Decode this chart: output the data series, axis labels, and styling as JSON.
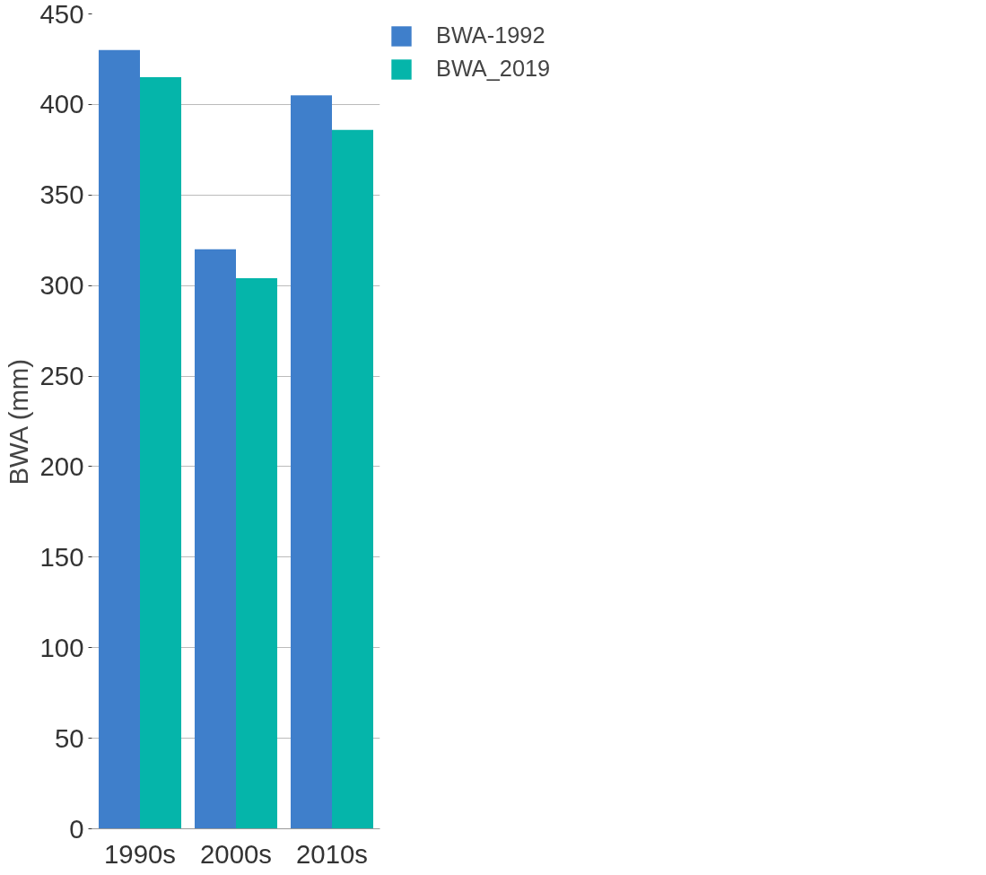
{
  "chart_data": {
    "type": "bar",
    "ylabel": "BWA (mm)",
    "categories": [
      "1990s",
      "2000s",
      "2010s"
    ],
    "series": [
      {
        "name": "BWA-1992",
        "color": "#3f7fcb",
        "values": [
          430,
          320,
          405
        ]
      },
      {
        "name": "BWA_2019",
        "color": "#05b5aa",
        "values": [
          415,
          304,
          386
        ]
      }
    ],
    "ylim": [
      0,
      450
    ],
    "yticks": [
      0,
      50,
      100,
      150,
      200,
      250,
      300,
      350,
      400,
      450
    ],
    "grid": "y",
    "legend": "top right"
  }
}
